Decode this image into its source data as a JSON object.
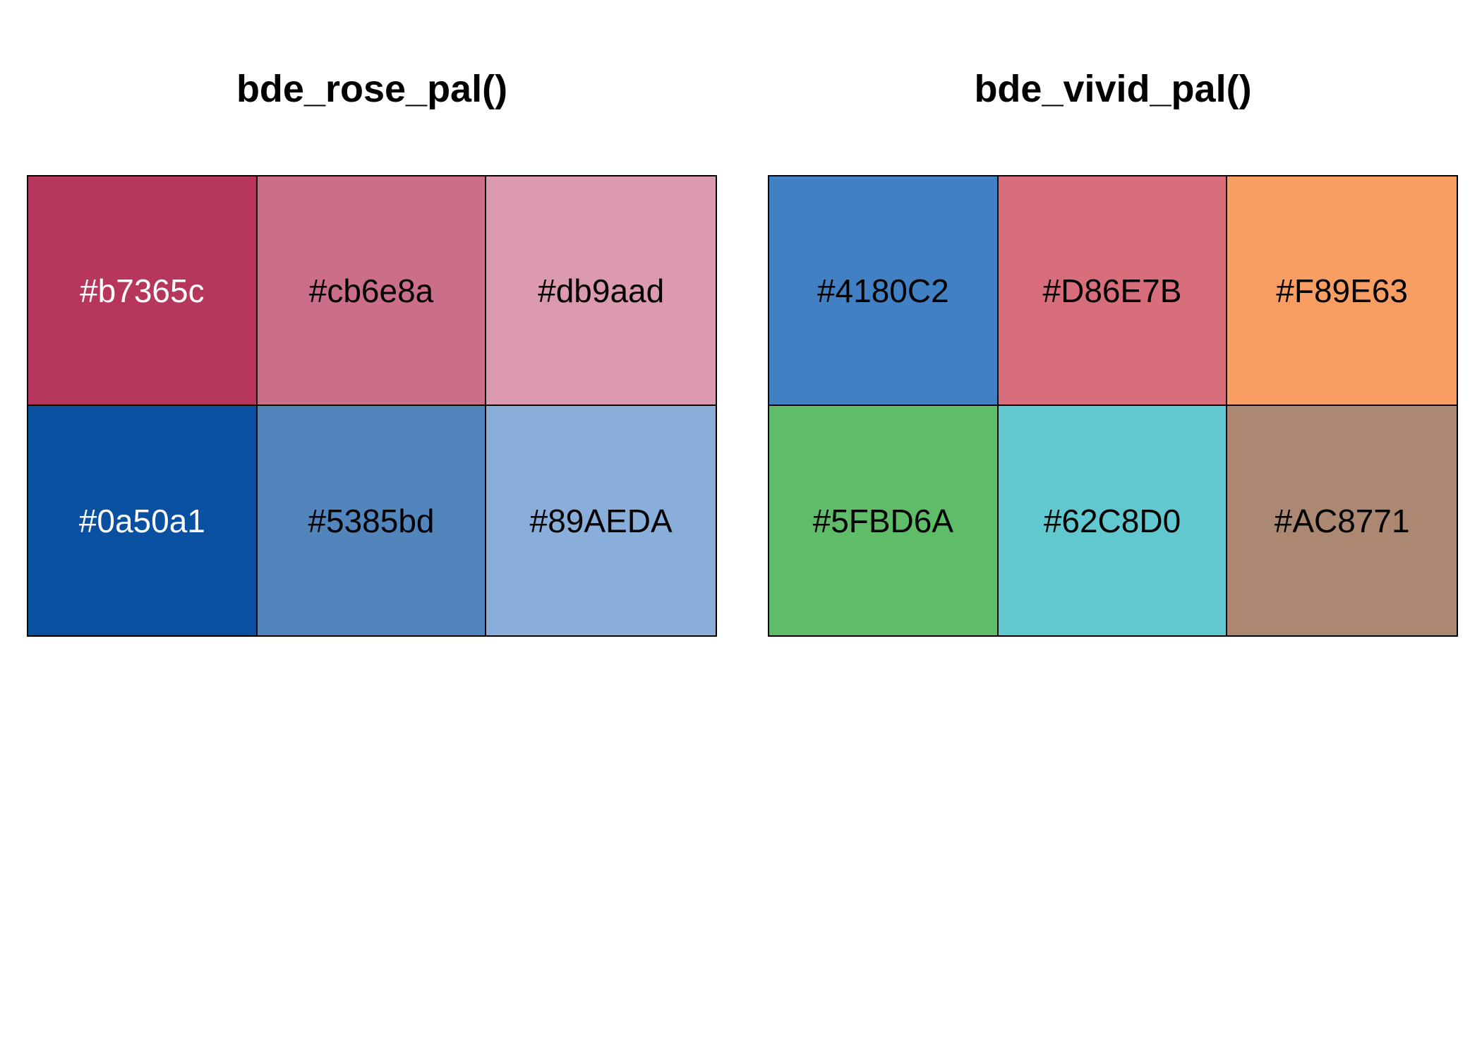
{
  "palettes": [
    {
      "title": "bde_rose_pal()",
      "swatches": [
        {
          "label": "#b7365c",
          "color": "#b7365c",
          "text_color": "#ffffff"
        },
        {
          "label": "#cb6e8a",
          "color": "#cb6e8a",
          "text_color": "#000000"
        },
        {
          "label": "#db9aad",
          "color": "#db9aad",
          "text_color": "#000000"
        },
        {
          "label": "#0a50a1",
          "color": "#0a50a1",
          "text_color": "#ffffff"
        },
        {
          "label": "#5385bd",
          "color": "#5385bd",
          "text_color": "#000000"
        },
        {
          "label": "#89AEDA",
          "color": "#89AEDA",
          "text_color": "#000000"
        }
      ]
    },
    {
      "title": "bde_vivid_pal()",
      "swatches": [
        {
          "label": "#4180C2",
          "color": "#4180C2",
          "text_color": "#000000"
        },
        {
          "label": "#D86E7B",
          "color": "#D86E7B",
          "text_color": "#000000"
        },
        {
          "label": "#F89E63",
          "color": "#F89E63",
          "text_color": "#000000"
        },
        {
          "label": "#5FBD6A",
          "color": "#5FBD6A",
          "text_color": "#000000"
        },
        {
          "label": "#62C8D0",
          "color": "#62C8D0",
          "text_color": "#000000"
        },
        {
          "label": "#AC8771",
          "color": "#AC8771",
          "text_color": "#000000"
        }
      ]
    }
  ]
}
